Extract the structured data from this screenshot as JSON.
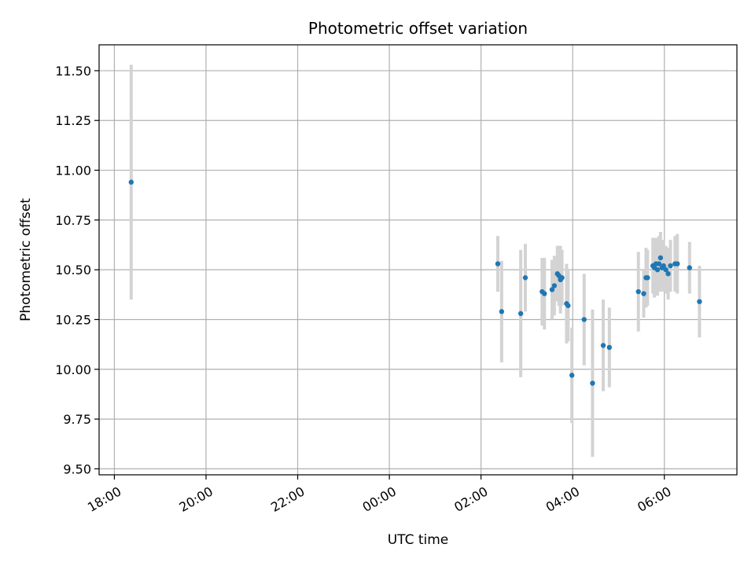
{
  "chart_data": {
    "type": "scatter",
    "title": "Photometric offset variation",
    "xlabel": "UTC time",
    "ylabel": "Photometric offset",
    "x_axis": {
      "kind": "time",
      "range": [
        "17:40",
        "07:35"
      ],
      "ticks": [
        {
          "t": "18:00",
          "label": "18:00"
        },
        {
          "t": "20:00",
          "label": "20:00"
        },
        {
          "t": "22:00",
          "label": "22:00"
        },
        {
          "t": "24:00",
          "label": "00:00"
        },
        {
          "t": "26:00",
          "label": "02:00"
        },
        {
          "t": "28:00",
          "label": "04:00"
        },
        {
          "t": "30:00",
          "label": "06:00"
        }
      ]
    },
    "y_axis": {
      "range": [
        9.47,
        11.63
      ],
      "ticks": [
        9.5,
        9.75,
        10.0,
        10.25,
        10.5,
        10.75,
        11.0,
        11.25,
        11.5
      ],
      "tick_labels": [
        "9.50",
        "9.75",
        "10.00",
        "10.25",
        "10.50",
        "10.75",
        "11.00",
        "11.25",
        "11.50"
      ]
    },
    "grid": true,
    "colors": {
      "point": "#1f77b4",
      "errorbar": "#d3d3d3",
      "grid": "#b0b0b0"
    },
    "points": [
      {
        "t": "18:22",
        "y": 10.94,
        "err": 0.59
      },
      {
        "t": "02:22",
        "y": 10.53,
        "err": 0.14
      },
      {
        "t": "02:27",
        "y": 10.29,
        "err": 0.255
      },
      {
        "t": "02:52",
        "y": 10.28,
        "err": 0.32
      },
      {
        "t": "02:58",
        "y": 10.46,
        "err": 0.17
      },
      {
        "t": "03:20",
        "y": 10.39,
        "err": 0.17
      },
      {
        "t": "03:23",
        "y": 10.38,
        "err": 0.18
      },
      {
        "t": "03:33",
        "y": 10.4,
        "err": 0.15
      },
      {
        "t": "03:36",
        "y": 10.42,
        "err": 0.15
      },
      {
        "t": "03:40",
        "y": 10.48,
        "err": 0.14
      },
      {
        "t": "03:42",
        "y": 10.47,
        "err": 0.15
      },
      {
        "t": "03:44",
        "y": 10.45,
        "err": 0.17
      },
      {
        "t": "03:46",
        "y": 10.46,
        "err": 0.14
      },
      {
        "t": "03:52",
        "y": 10.33,
        "err": 0.2
      },
      {
        "t": "03:54",
        "y": 10.32,
        "err": 0.18
      },
      {
        "t": "03:59",
        "y": 9.97,
        "err": 0.24
      },
      {
        "t": "04:15",
        "y": 10.25,
        "err": 0.23
      },
      {
        "t": "04:26",
        "y": 9.93,
        "err": 0.37
      },
      {
        "t": "04:40",
        "y": 10.12,
        "err": 0.23
      },
      {
        "t": "04:48",
        "y": 10.11,
        "err": 0.2
      },
      {
        "t": "05:26",
        "y": 10.39,
        "err": 0.2
      },
      {
        "t": "05:33",
        "y": 10.38,
        "err": 0.12
      },
      {
        "t": "05:36",
        "y": 10.46,
        "err": 0.15
      },
      {
        "t": "05:38",
        "y": 10.46,
        "err": 0.14
      },
      {
        "t": "05:45",
        "y": 10.52,
        "err": 0.14
      },
      {
        "t": "05:47",
        "y": 10.51,
        "err": 0.15
      },
      {
        "t": "05:49",
        "y": 10.53,
        "err": 0.13
      },
      {
        "t": "05:51",
        "y": 10.5,
        "err": 0.13
      },
      {
        "t": "05:53",
        "y": 10.53,
        "err": 0.14
      },
      {
        "t": "05:55",
        "y": 10.56,
        "err": 0.13
      },
      {
        "t": "05:57",
        "y": 10.51,
        "err": 0.12
      },
      {
        "t": "05:59",
        "y": 10.52,
        "err": 0.13
      },
      {
        "t": "06:02",
        "y": 10.5,
        "err": 0.12
      },
      {
        "t": "06:05",
        "y": 10.48,
        "err": 0.13
      },
      {
        "t": "06:08",
        "y": 10.52,
        "err": 0.13
      },
      {
        "t": "06:14",
        "y": 10.53,
        "err": 0.14
      },
      {
        "t": "06:17",
        "y": 10.53,
        "err": 0.15
      },
      {
        "t": "06:33",
        "y": 10.51,
        "err": 0.13
      },
      {
        "t": "06:46",
        "y": 10.34,
        "err": 0.18
      }
    ]
  }
}
